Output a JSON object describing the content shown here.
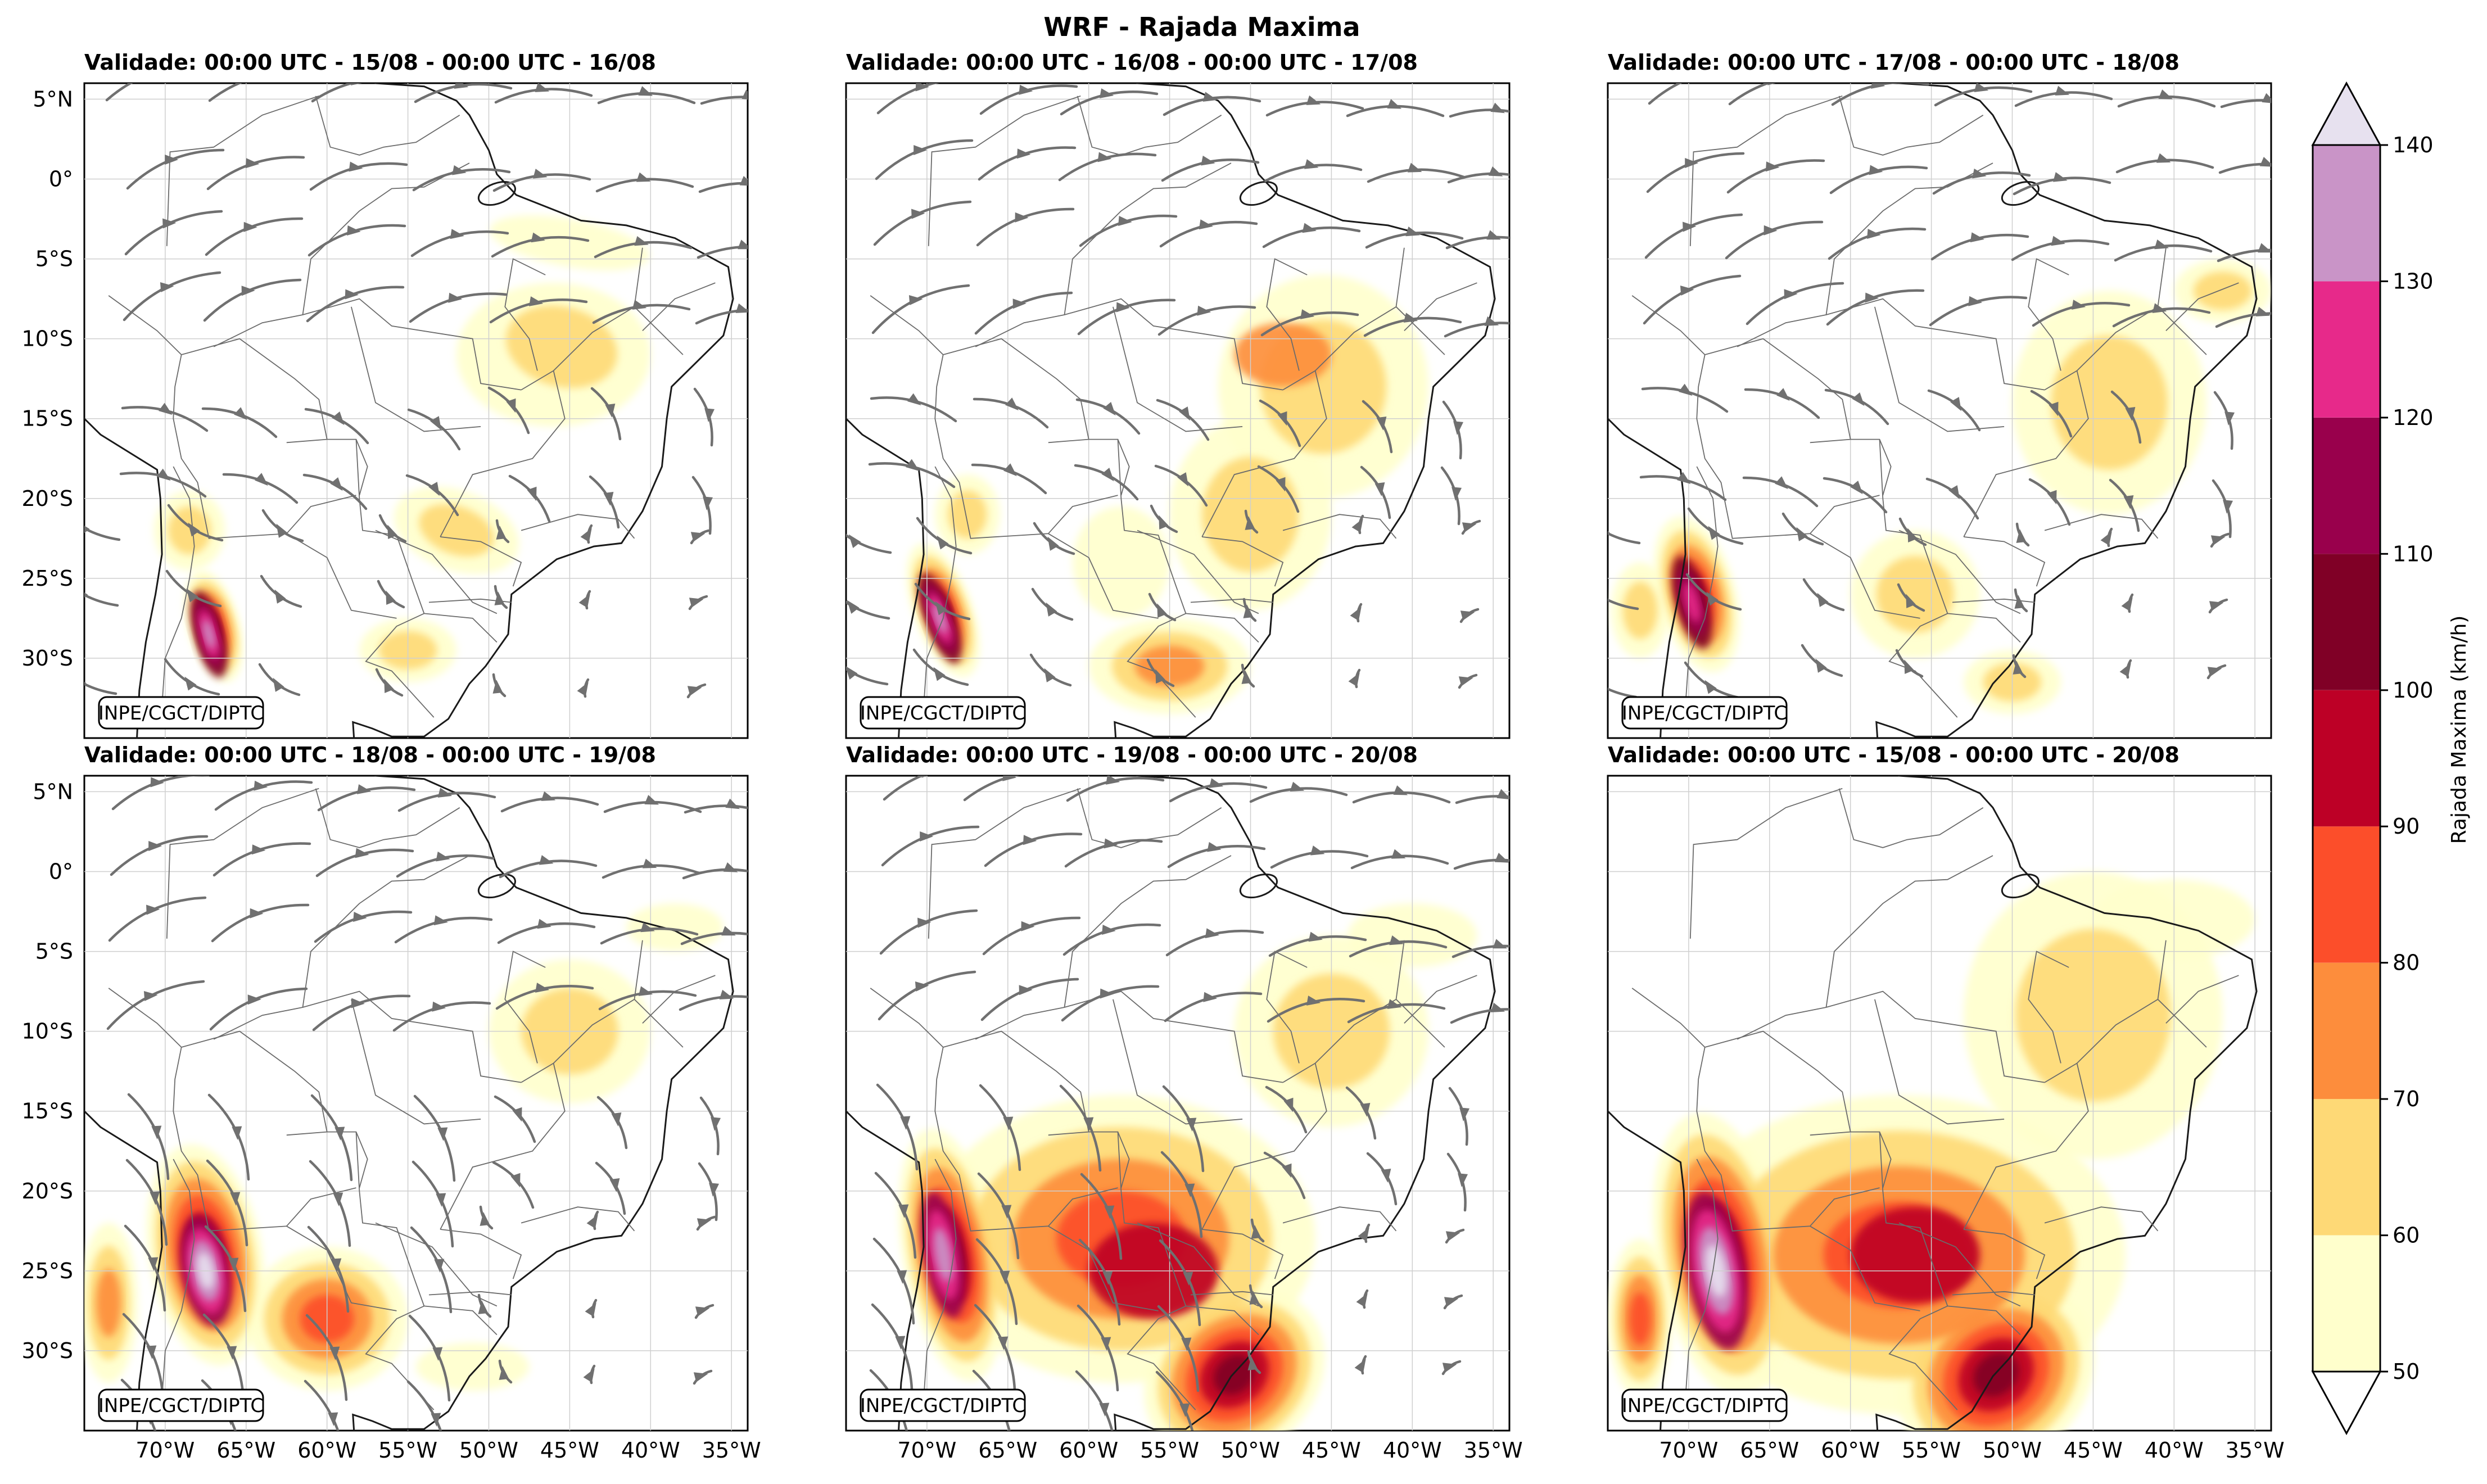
{
  "title": "WRF - Rajada Maxima",
  "credit": "INPE/CGCT/DIPTC",
  "panels": [
    {
      "title": "Validade: 00:00 UTC - 15/08 - 00:00 UTC - 16/08",
      "streamlines": true
    },
    {
      "title": "Validade: 00:00 UTC - 16/08 - 00:00 UTC - 17/08",
      "streamlines": true
    },
    {
      "title": "Validade: 00:00 UTC - 17/08 - 00:00 UTC - 18/08",
      "streamlines": true
    },
    {
      "title": "Validade: 00:00 UTC - 18/08 - 00:00 UTC - 19/08",
      "streamlines": true
    },
    {
      "title": "Validade: 00:00 UTC - 19/08 - 00:00 UTC - 20/08",
      "streamlines": true
    },
    {
      "title": "Validade: 00:00 UTC - 15/08 - 00:00 UTC - 20/08",
      "streamlines": false
    }
  ],
  "map": {
    "lon_ticks": [
      "70°W",
      "65°W",
      "60°W",
      "55°W",
      "50°W",
      "45°W",
      "40°W",
      "35°W"
    ],
    "lat_ticks": [
      "5°N",
      "0°",
      "5°S",
      "10°S",
      "15°S",
      "20°S",
      "25°S",
      "30°S"
    ],
    "lon_values": [
      -70,
      -65,
      -60,
      -55,
      -50,
      -45,
      -40,
      -35
    ],
    "lat_values": [
      5,
      0,
      -5,
      -10,
      -15,
      -20,
      -25,
      -30
    ],
    "extent": {
      "lon_min": -75,
      "lon_max": -34,
      "lat_min": -35,
      "lat_max": 6
    }
  },
  "colorbar": {
    "label": "Rajada Maxima (km/h)",
    "tick_labels": [
      "50",
      "60",
      "70",
      "80",
      "90",
      "100",
      "110",
      "120",
      "130",
      "140"
    ],
    "levels": [
      50,
      60,
      70,
      80,
      90,
      100,
      110,
      120,
      130,
      140
    ],
    "colors": [
      "#ffffcc",
      "#fed976",
      "#fd8d3c",
      "#fc4e2a",
      "#bd0026",
      "#800026",
      "#99004c",
      "#e7298a",
      "#c994c7",
      "#e7e1ef"
    ]
  }
}
